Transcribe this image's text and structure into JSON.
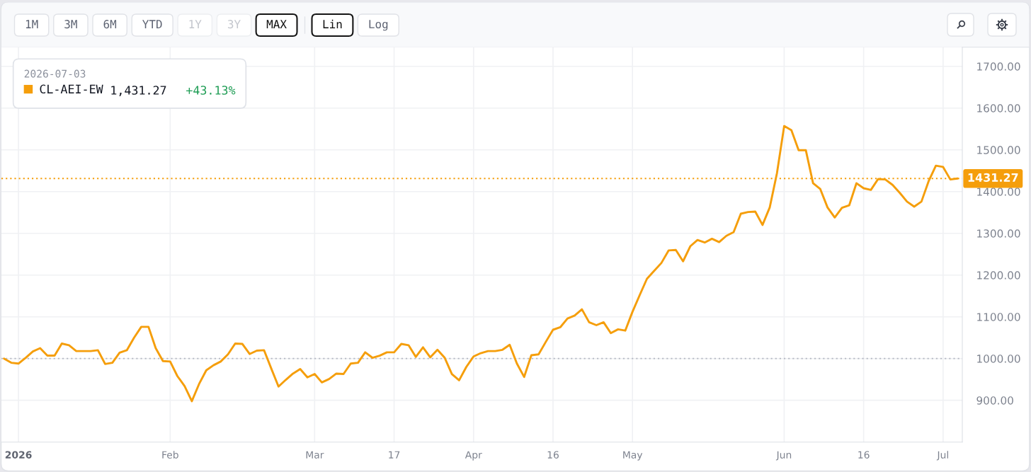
{
  "chart_data": {
    "type": "line",
    "categories": [
      null,
      null,
      "2026",
      null,
      null,
      null,
      null,
      null,
      null,
      null,
      null,
      null,
      null,
      null,
      null,
      null,
      null,
      null,
      null,
      null,
      null,
      null,
      null,
      "Feb",
      null,
      null,
      null,
      null,
      null,
      null,
      null,
      null,
      null,
      null,
      null,
      null,
      null,
      null,
      null,
      null,
      null,
      null,
      null,
      "Mar",
      null,
      null,
      null,
      null,
      null,
      null,
      null,
      null,
      null,
      null,
      "17",
      null,
      null,
      null,
      null,
      null,
      null,
      null,
      null,
      null,
      null,
      "Apr",
      null,
      null,
      null,
      null,
      null,
      null,
      null,
      null,
      null,
      null,
      "16",
      null,
      null,
      null,
      null,
      null,
      null,
      null,
      null,
      null,
      null,
      "May",
      null,
      null,
      null,
      null,
      null,
      null,
      null,
      null,
      null,
      null,
      null,
      null,
      null,
      null,
      null,
      null,
      null,
      null,
      null,
      null,
      "Jun",
      null,
      null,
      null,
      null,
      null,
      null,
      null,
      null,
      null,
      null,
      "16",
      null,
      null,
      null,
      null,
      null,
      null,
      null,
      null,
      null,
      null,
      "Jul",
      null,
      null
    ],
    "series": [
      {
        "name": "CL-AEI-EW",
        "color": "#f59e0b",
        "values": [
          1000,
          990,
          988,
          1002,
          1017,
          1025,
          1007,
          1007,
          1036,
          1032,
          1018,
          1018,
          1018,
          1020,
          987,
          990,
          1014,
          1020,
          1050,
          1076,
          1076,
          1025,
          994,
          993,
          958,
          934,
          898,
          939,
          972,
          984,
          993,
          1010,
          1036,
          1035,
          1011,
          1019,
          1020,
          976,
          933,
          949,
          964,
          975,
          955,
          963,
          943,
          951,
          964,
          963,
          988,
          990,
          1015,
          1002,
          1007,
          1015,
          1015,
          1035,
          1032,
          1004,
          1027,
          1003,
          1021,
          1002,
          963,
          948,
          980,
          1005,
          1013,
          1018,
          1018,
          1021,
          1033,
          988,
          956,
          1008,
          1010,
          1040,
          1069,
          1075,
          1096,
          1103,
          1118,
          1087,
          1080,
          1087,
          1061,
          1070,
          1067,
          1112,
          1152,
          1191,
          1210,
          1229,
          1259,
          1260,
          1233,
          1269,
          1284,
          1278,
          1287,
          1279,
          1294,
          1303,
          1347,
          1351,
          1352,
          1320,
          1362,
          1444,
          1557,
          1547,
          1499,
          1499,
          1420,
          1406,
          1362,
          1338,
          1361,
          1367,
          1420,
          1408,
          1404,
          1430,
          1429,
          1416,
          1397,
          1376,
          1364,
          1376,
          1425,
          1462,
          1459,
          1429,
          1431.27
        ]
      }
    ],
    "ylim": [
      800,
      1746
    ],
    "yticks": [
      {
        "value": 900,
        "label": "900.00"
      },
      {
        "value": 1000,
        "label": "1000.00"
      },
      {
        "value": 1100,
        "label": "1100.00"
      },
      {
        "value": 1200,
        "label": "1200.00"
      },
      {
        "value": 1300,
        "label": "1300.00"
      },
      {
        "value": 1400,
        "label": "1400.00"
      },
      {
        "value": 1500,
        "label": "1500.00"
      },
      {
        "value": 1600,
        "label": "1600.00"
      },
      {
        "value": 1700,
        "label": "1700.00"
      }
    ],
    "grid": true,
    "legend": "top left",
    "legend_title": "2026-07-03",
    "annotations": [
      "1M",
      "3M",
      "6M",
      "YTD",
      "1Y",
      "3Y",
      "MAX",
      "Lin",
      "Log",
      "1,431.27",
      "+43.13%"
    ],
    "ref_lines": [
      {
        "axis": "y",
        "value": 1000,
        "color": "#b4b8c2",
        "line_style": "dotted"
      },
      {
        "axis": "y",
        "value": 1431.27,
        "label": "1431.27",
        "color": "#f59e0b",
        "line_style": "dotted"
      }
    ]
  }
}
